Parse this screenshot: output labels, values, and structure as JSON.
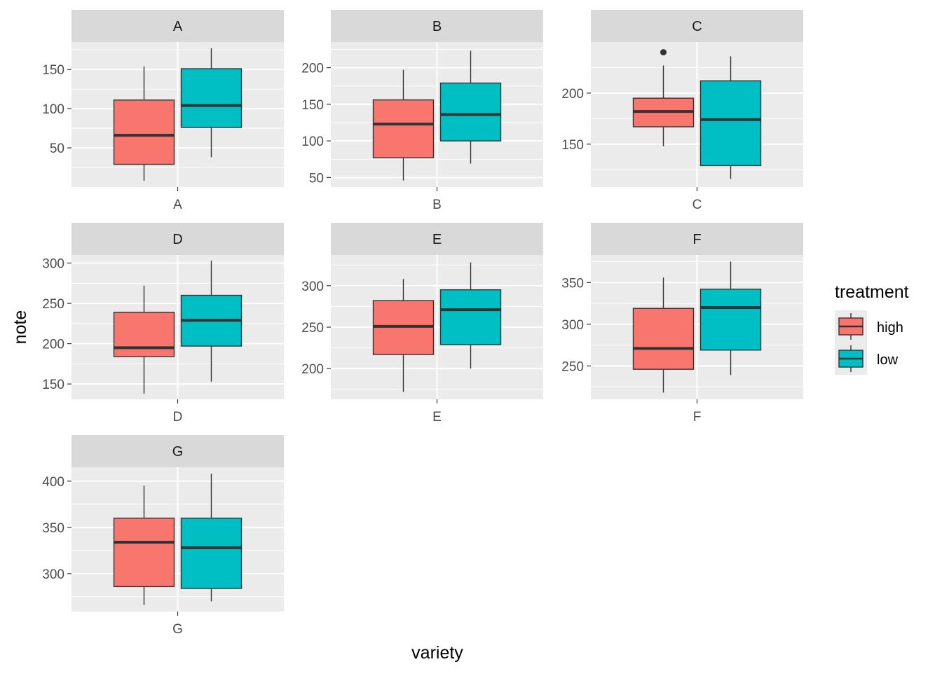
{
  "chart_data": {
    "type": "boxplot",
    "xlabel": "variety",
    "ylabel": "note",
    "legend": {
      "title": "treatment",
      "position": "right",
      "entries": [
        {
          "name": "high",
          "color": "#F8766D"
        },
        {
          "name": "low",
          "color": "#00BFC4"
        }
      ]
    },
    "colors": {
      "high": "#F8766D",
      "low": "#00BFC4",
      "panel_bg": "#EBEBEB",
      "strip_bg": "#D9D9D9",
      "grid": "#FFFFFF",
      "box_line": "#333333",
      "tick_text": "#4D4D4D"
    },
    "grid": true,
    "panels": [
      {
        "strip": "A",
        "x_tick": "A",
        "ylim": [
          0,
          185
        ],
        "y_ticks": [
          50,
          100,
          150
        ],
        "y_minor": [
          25,
          75,
          125,
          175
        ],
        "boxes": [
          {
            "treatment": "high",
            "lower_whisker": 8,
            "q1": 29,
            "median": 66,
            "q3": 111,
            "upper_whisker": 154,
            "outliers": []
          },
          {
            "treatment": "low",
            "lower_whisker": 38,
            "q1": 76,
            "median": 104,
            "q3": 151,
            "upper_whisker": 177,
            "outliers": []
          }
        ]
      },
      {
        "strip": "B",
        "x_tick": "B",
        "ylim": [
          37,
          235
        ],
        "y_ticks": [
          50,
          100,
          150,
          200
        ],
        "y_minor": [
          75,
          125,
          175,
          225
        ],
        "boxes": [
          {
            "treatment": "high",
            "lower_whisker": 46,
            "q1": 77,
            "median": 123,
            "q3": 156,
            "upper_whisker": 197,
            "outliers": []
          },
          {
            "treatment": "low",
            "lower_whisker": 69,
            "q1": 100,
            "median": 136,
            "q3": 179,
            "upper_whisker": 223,
            "outliers": []
          }
        ]
      },
      {
        "strip": "C",
        "x_tick": "C",
        "ylim": [
          108,
          250
        ],
        "y_ticks": [
          150,
          200
        ],
        "y_minor": [
          125,
          175,
          225
        ],
        "boxes": [
          {
            "treatment": "high",
            "lower_whisker": 148,
            "q1": 167,
            "median": 182,
            "q3": 195,
            "upper_whisker": 227,
            "outliers": [
              240
            ]
          },
          {
            "treatment": "low",
            "lower_whisker": 116,
            "q1": 129,
            "median": 174,
            "q3": 212,
            "upper_whisker": 236,
            "outliers": []
          }
        ]
      },
      {
        "strip": "D",
        "x_tick": "D",
        "ylim": [
          131,
          310
        ],
        "y_ticks": [
          150,
          200,
          250,
          300
        ],
        "y_minor": [
          175,
          225,
          275
        ],
        "boxes": [
          {
            "treatment": "high",
            "lower_whisker": 138,
            "q1": 184,
            "median": 195,
            "q3": 239,
            "upper_whisker": 272,
            "outliers": []
          },
          {
            "treatment": "low",
            "lower_whisker": 153,
            "q1": 197,
            "median": 229,
            "q3": 260,
            "upper_whisker": 303,
            "outliers": []
          }
        ]
      },
      {
        "strip": "E",
        "x_tick": "E",
        "ylim": [
          163,
          337
        ],
        "y_ticks": [
          200,
          250,
          300
        ],
        "y_minor": [
          175,
          225,
          275,
          325
        ],
        "boxes": [
          {
            "treatment": "high",
            "lower_whisker": 172,
            "q1": 217,
            "median": 251,
            "q3": 282,
            "upper_whisker": 308,
            "outliers": []
          },
          {
            "treatment": "low",
            "lower_whisker": 200,
            "q1": 229,
            "median": 271,
            "q3": 295,
            "upper_whisker": 328,
            "outliers": []
          }
        ]
      },
      {
        "strip": "F",
        "x_tick": "F",
        "ylim": [
          210,
          383
        ],
        "y_ticks": [
          250,
          300,
          350
        ],
        "y_minor": [
          225,
          275,
          325,
          375
        ],
        "boxes": [
          {
            "treatment": "high",
            "lower_whisker": 218,
            "q1": 246,
            "median": 271,
            "q3": 319,
            "upper_whisker": 356,
            "outliers": []
          },
          {
            "treatment": "low",
            "lower_whisker": 239,
            "q1": 269,
            "median": 320,
            "q3": 342,
            "upper_whisker": 375,
            "outliers": []
          }
        ]
      },
      {
        "strip": "G",
        "x_tick": "G",
        "ylim": [
          259,
          415
        ],
        "y_ticks": [
          300,
          350,
          400
        ],
        "y_minor": [
          275,
          325,
          375
        ],
        "boxes": [
          {
            "treatment": "high",
            "lower_whisker": 266,
            "q1": 286,
            "median": 334,
            "q3": 360,
            "upper_whisker": 395,
            "outliers": []
          },
          {
            "treatment": "low",
            "lower_whisker": 270,
            "q1": 284,
            "median": 328,
            "q3": 360,
            "upper_whisker": 408,
            "outliers": []
          }
        ]
      }
    ]
  }
}
